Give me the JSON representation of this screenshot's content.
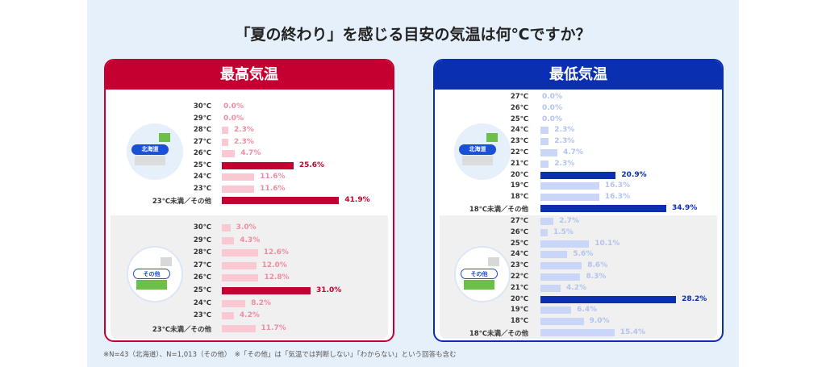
{
  "title": "「夏の終わり」を感じる目安の気温は何℃ですか？",
  "note": "※N=43（北海道）、N=1,013（その他）　※「その他」は「気温では判断しない」「わからない」という回答も含む",
  "colors": {
    "red": "#c3002f",
    "red_light": "#fac8d2",
    "red_light_text": "#f08ca2",
    "blue": "#0a2fb0",
    "blue_light": "#c9d6f7",
    "blue_light_text": "#b3c3ee"
  },
  "chart_data": [
    {
      "type": "bar",
      "orientation": "horizontal",
      "title": "最高気温",
      "panel": "北海道",
      "unit": "%",
      "categories": [
        "30℃",
        "29℃",
        "28℃",
        "27℃",
        "26℃",
        "25℃",
        "24℃",
        "23℃",
        "23℃未満／その他"
      ],
      "values": [
        0.0,
        0.0,
        2.3,
        2.3,
        4.7,
        25.6,
        11.6,
        11.6,
        41.9
      ],
      "labels": [
        "0.0%",
        "0.0%",
        "2.3%",
        "2.3%",
        "4.7%",
        "25.6%",
        "11.6%",
        "11.6%",
        "41.9%"
      ],
      "highlight": [
        5,
        8
      ]
    },
    {
      "type": "bar",
      "orientation": "horizontal",
      "title": "最高気温",
      "panel": "その他",
      "unit": "%",
      "categories": [
        "30℃",
        "29℃",
        "28℃",
        "27℃",
        "26℃",
        "25℃",
        "24℃",
        "23℃",
        "23℃未満／その他"
      ],
      "values": [
        3.0,
        4.3,
        12.6,
        12.0,
        12.8,
        31.0,
        8.2,
        4.2,
        11.7
      ],
      "labels": [
        "3.0%",
        "4.3%",
        "12.6%",
        "12.0%",
        "12.8%",
        "31.0%",
        "8.2%",
        "4.2%",
        "11.7%"
      ],
      "highlight": [
        5
      ]
    },
    {
      "type": "bar",
      "orientation": "horizontal",
      "title": "最低気温",
      "panel": "北海道",
      "unit": "%",
      "categories": [
        "27℃",
        "26℃",
        "25℃",
        "24℃",
        "23℃",
        "22℃",
        "21℃",
        "20℃",
        "19℃",
        "18℃",
        "18℃未満／その他"
      ],
      "values": [
        0.0,
        0.0,
        0.0,
        2.3,
        2.3,
        4.7,
        2.3,
        20.9,
        16.3,
        16.3,
        34.9
      ],
      "labels": [
        "0.0%",
        "0.0%",
        "0.0%",
        "2.3%",
        "2.3%",
        "4.7%",
        "2.3%",
        "20.9%",
        "16.3%",
        "16.3%",
        "34.9%"
      ],
      "highlight": [
        7,
        10
      ]
    },
    {
      "type": "bar",
      "orientation": "horizontal",
      "title": "最低気温",
      "panel": "その他",
      "unit": "%",
      "categories": [
        "27℃",
        "26℃",
        "25℃",
        "24℃",
        "23℃",
        "22℃",
        "21℃",
        "20℃",
        "19℃",
        "18℃",
        "18℃未満／その他"
      ],
      "values": [
        2.7,
        1.5,
        10.1,
        5.6,
        8.6,
        8.3,
        4.2,
        28.2,
        6.4,
        9.0,
        15.4
      ],
      "labels": [
        "2.7%",
        "1.5%",
        "10.1%",
        "5.6%",
        "8.6%",
        "8.3%",
        "4.2%",
        "28.2%",
        "6.4%",
        "9.0%",
        "15.4%"
      ],
      "highlight": [
        7
      ]
    }
  ]
}
